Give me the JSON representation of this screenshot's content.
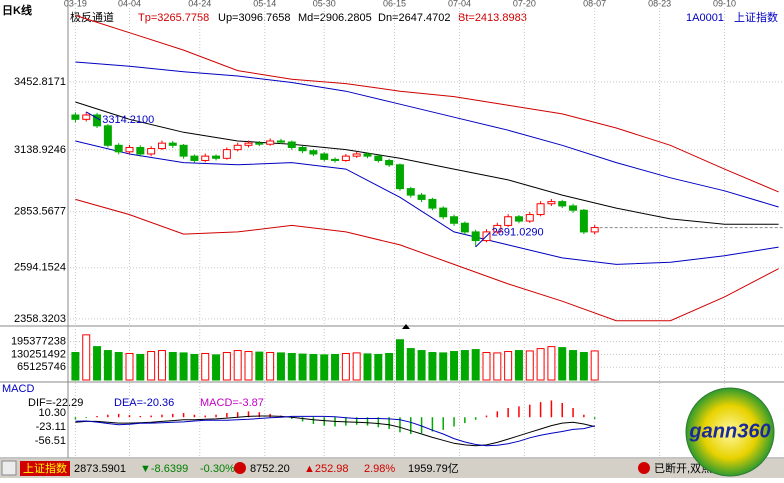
{
  "header": {
    "title": "日K线",
    "indicator": "极反通道",
    "items": [
      {
        "text": "Tp=3265.7758",
        "color": "#d00000"
      },
      {
        "text": "Up=3096.7658",
        "color": "#000000"
      },
      {
        "text": "Md=2906.2805",
        "color": "#000000"
      },
      {
        "text": "Dn=2647.4702",
        "color": "#000000"
      },
      {
        "text": "Bt=2413.8983",
        "color": "#d00000"
      }
    ],
    "code": "1A0001",
    "name": "上证指数"
  },
  "chart_data": [
    {
      "type": "candlestick",
      "up_color": "#ff0000",
      "down_color": "#00a800",
      "grid": true,
      "xlim": [
        -1,
        131
      ],
      "xticks": [
        {
          "value": 0,
          "label": "03-19"
        },
        {
          "value": 10,
          "label": "04-04"
        },
        {
          "value": 23,
          "label": "04-24"
        },
        {
          "value": 35,
          "label": "05-14"
        },
        {
          "value": 46,
          "label": "05-30"
        },
        {
          "value": 59,
          "label": "06-15"
        },
        {
          "value": 71,
          "label": "07-04"
        },
        {
          "value": 83,
          "label": "07-20"
        },
        {
          "value": 96,
          "label": "08-07"
        },
        {
          "value": 108,
          "label": "08-23"
        },
        {
          "value": 120,
          "label": "09-10"
        }
      ],
      "ylim": [
        2330,
        3785
      ],
      "yticks": [
        3452.8171,
        3138.9246,
        2853.5677,
        2594.1524,
        2358.3203
      ],
      "x": [
        0,
        2,
        4,
        6,
        8,
        10,
        12,
        14,
        16,
        18,
        20,
        22,
        24,
        26,
        28,
        30,
        32,
        34,
        36,
        38,
        40,
        42,
        44,
        46,
        48,
        50,
        52,
        54,
        56,
        58,
        60,
        62,
        64,
        66,
        68,
        70,
        72,
        74,
        76,
        78,
        80,
        82,
        84,
        86,
        88,
        90,
        92,
        94,
        96
      ],
      "open": [
        3300,
        3280,
        3300,
        3250,
        3160,
        3130,
        3150,
        3120,
        3145,
        3170,
        3160,
        3110,
        3090,
        3110,
        3100,
        3140,
        3160,
        3170,
        3165,
        3180,
        3175,
        3150,
        3135,
        3120,
        3095,
        3090,
        3110,
        3120,
        3110,
        3090,
        3070,
        2960,
        2930,
        2910,
        2870,
        2830,
        2800,
        2760,
        2720,
        2760,
        2790,
        2830,
        2810,
        2840,
        2890,
        2900,
        2880,
        2860,
        2760
      ],
      "high": [
        3312,
        3314.21,
        3310,
        3258,
        3170,
        3162,
        3160,
        3156,
        3182,
        3180,
        3166,
        3118,
        3122,
        3118,
        3150,
        3172,
        3182,
        3180,
        3192,
        3190,
        3182,
        3158,
        3142,
        3128,
        3104,
        3120,
        3130,
        3128,
        3116,
        3098,
        3076,
        2968,
        2940,
        2918,
        2878,
        2840,
        2808,
        2770,
        2772,
        2802,
        2842,
        2838,
        2852,
        2902,
        2912,
        2908,
        2890,
        2866,
        2792
      ],
      "low": [
        3266,
        3270,
        3240,
        3150,
        3118,
        3120,
        3108,
        3110,
        3138,
        3148,
        3098,
        3080,
        3082,
        3090,
        3094,
        3132,
        3150,
        3156,
        3158,
        3166,
        3140,
        3124,
        3110,
        3086,
        3080,
        3084,
        3102,
        3100,
        3080,
        3060,
        2950,
        2918,
        2898,
        2860,
        2818,
        2788,
        2748,
        2691.029,
        2712,
        2752,
        2782,
        2800,
        2802,
        2832,
        2880,
        2870,
        2848,
        2750,
        2748
      ],
      "close": [
        3280,
        3300,
        3250,
        3160,
        3130,
        3150,
        3120,
        3145,
        3170,
        3160,
        3110,
        3090,
        3110,
        3100,
        3140,
        3160,
        3170,
        3165,
        3180,
        3175,
        3150,
        3135,
        3120,
        3095,
        3090,
        3110,
        3120,
        3110,
        3090,
        3070,
        2960,
        2930,
        2910,
        2870,
        2830,
        2800,
        2760,
        2720,
        2760,
        2790,
        2830,
        2810,
        2840,
        2890,
        2900,
        2880,
        2860,
        2760,
        2780
      ],
      "series": [
        {
          "color": "#d00000",
          "x": [
            0,
            10,
            20,
            30,
            40,
            50,
            60,
            70,
            80,
            90,
            100,
            110,
            120,
            130
          ],
          "values": [
            3760,
            3680,
            3600,
            3505,
            3465,
            3445,
            3410,
            3385,
            3345,
            3305,
            3240,
            3160,
            3050,
            2945
          ]
        },
        {
          "color": "#0000c0",
          "x": [
            0,
            10,
            20,
            30,
            40,
            50,
            60,
            70,
            80,
            90,
            100,
            110,
            120,
            130
          ],
          "values": [
            3545,
            3525,
            3500,
            3480,
            3450,
            3410,
            3350,
            3290,
            3230,
            3160,
            3080,
            3010,
            2950,
            2875
          ]
        },
        {
          "color": "#000000",
          "x": [
            0,
            10,
            20,
            30,
            40,
            50,
            60,
            70,
            80,
            90,
            100,
            110,
            120,
            130
          ],
          "values": [
            3360,
            3280,
            3220,
            3180,
            3165,
            3140,
            3100,
            3050,
            3000,
            2930,
            2870,
            2820,
            2795,
            2795
          ]
        },
        {
          "color": "#0000c0",
          "x": [
            0,
            10,
            20,
            30,
            40,
            50,
            60,
            70,
            80,
            90,
            100,
            110,
            120,
            130
          ],
          "values": [
            3180,
            3120,
            3080,
            3070,
            3080,
            3050,
            2920,
            2760,
            2700,
            2640,
            2610,
            2620,
            2650,
            2690
          ]
        },
        {
          "color": "#d00000",
          "x": [
            0,
            10,
            20,
            30,
            40,
            50,
            60,
            70,
            80,
            90,
            100,
            110,
            120,
            130
          ],
          "values": [
            2910,
            2840,
            2750,
            2760,
            2790,
            2760,
            2700,
            2610,
            2520,
            2440,
            2350,
            2350,
            2460,
            2590
          ]
        }
      ],
      "annotations": [
        {
          "text": "3314.2100",
          "x": 2,
          "y": 3314.21
        },
        {
          "text": "2691.0290",
          "x": 74,
          "y": 2691.029
        }
      ]
    },
    {
      "type": "bar",
      "up_color": "#ff0000",
      "down_color": "#00a800",
      "grid": true,
      "ylim": [
        0,
        275000000
      ],
      "yticks": [
        195377238,
        130251492,
        65125746
      ],
      "x": [
        0,
        2,
        4,
        6,
        8,
        10,
        12,
        14,
        16,
        18,
        20,
        22,
        24,
        26,
        28,
        30,
        32,
        34,
        36,
        38,
        40,
        42,
        44,
        46,
        48,
        50,
        52,
        54,
        56,
        58,
        60,
        62,
        64,
        66,
        68,
        70,
        72,
        74,
        76,
        78,
        80,
        82,
        84,
        86,
        88,
        90,
        92,
        94,
        96
      ],
      "values": [
        140000000,
        230000000,
        170000000,
        150000000,
        140000000,
        135000000,
        130000000,
        145000000,
        150000000,
        140000000,
        138000000,
        130000000,
        135000000,
        128000000,
        140000000,
        150000000,
        145000000,
        142000000,
        140000000,
        138000000,
        135000000,
        132000000,
        130000000,
        128000000,
        130000000,
        135000000,
        138000000,
        133000000,
        130000000,
        135000000,
        205000000,
        160000000,
        150000000,
        140000000,
        138000000,
        145000000,
        150000000,
        155000000,
        140000000,
        138000000,
        145000000,
        150000000,
        148000000,
        160000000,
        170000000,
        165000000,
        150000000,
        140000000,
        148000000
      ]
    },
    {
      "type": "macd",
      "title": "MACD",
      "labels": [
        {
          "text": "DIF=-22.29",
          "color": "#000000"
        },
        {
          "text": "DEA=-20.36",
          "color": "#0000c0"
        },
        {
          "text": "MACD=-3.87",
          "color": "#c000c0"
        }
      ],
      "up_color": "#ff0000",
      "down_color": "#00a800",
      "dif_color": "#000000",
      "dea_color": "#0000c0",
      "ylim": [
        -90,
        53
      ],
      "yticks": [
        {
          "value": 10.3,
          "label": "10.30"
        },
        -23.11,
        -56.51
      ],
      "x": [
        0,
        2,
        4,
        6,
        8,
        10,
        12,
        14,
        16,
        18,
        20,
        22,
        24,
        26,
        28,
        30,
        32,
        34,
        36,
        38,
        40,
        42,
        44,
        46,
        48,
        50,
        52,
        54,
        56,
        58,
        60,
        62,
        64,
        66,
        68,
        70,
        72,
        74,
        76,
        78,
        80,
        82,
        84,
        86,
        88,
        90,
        92,
        94,
        96
      ],
      "macd": [
        -5,
        -2,
        3,
        6,
        8,
        5,
        3,
        4,
        6,
        8,
        10,
        6,
        4,
        6,
        10,
        12,
        14,
        12,
        8,
        4,
        -4,
        -10,
        -16,
        -20,
        -22,
        -20,
        -18,
        -20,
        -24,
        -28,
        -36,
        -40,
        -38,
        -34,
        -30,
        -22,
        -14,
        -6,
        4,
        14,
        22,
        26,
        30,
        36,
        40,
        34,
        22,
        6,
        -3.87
      ],
      "dif": [
        -12,
        -10,
        -10,
        -12,
        -14,
        -14,
        -13,
        -12,
        -10,
        -8,
        -6,
        -6,
        -5,
        -4,
        -2,
        0,
        2,
        3,
        3,
        2,
        0,
        -3,
        -6,
        -8,
        -10,
        -11,
        -12,
        -13,
        -15,
        -18,
        -24,
        -32,
        -40,
        -48,
        -55,
        -62,
        -66,
        -68,
        -66,
        -60,
        -52,
        -44,
        -36,
        -28,
        -20,
        -14,
        -12,
        -16,
        -22.29
      ],
      "dea": [
        -9.5,
        -9,
        -11.5,
        -15,
        -18,
        -16.5,
        -14.5,
        -14,
        -13,
        -12,
        -11,
        -9,
        -7,
        -7,
        -7,
        -6,
        -5,
        -3,
        -1,
        0,
        2,
        2,
        2,
        2,
        1,
        -1,
        -3,
        -3,
        -3,
        -4,
        -6,
        -12,
        -21,
        -31,
        -40,
        -51,
        -59,
        -65,
        -68,
        -67,
        -63,
        -57,
        -49,
        -43,
        -38,
        -34,
        -29,
        -27,
        -20.36
      ]
    }
  ],
  "status_bar": {
    "index": "上证指数",
    "items": [
      {
        "text": "2873.5901",
        "color": "#000000"
      },
      {
        "text": "▼-8.6399",
        "color": "#008000"
      },
      {
        "text": "-0.30%",
        "color": "#008000"
      },
      {
        "text": "8752.20",
        "color": "#000000"
      },
      {
        "text": "▲252.98",
        "color": "#d00000"
      },
      {
        "text": "2.98%",
        "color": "#d00000"
      },
      {
        "text": "1959.79亿",
        "color": "#000000"
      }
    ],
    "message": "已断开,双点打开."
  },
  "logo": {
    "text": "gann360"
  }
}
